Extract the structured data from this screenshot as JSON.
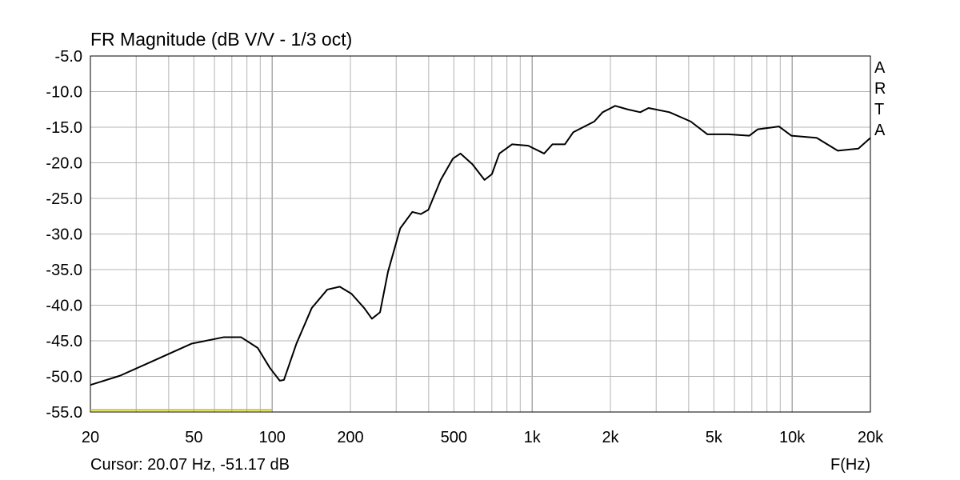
{
  "chart_data": {
    "type": "line",
    "title": "FR Magnitude (dB V/V - 1/3 oct)",
    "watermark": "ARTA",
    "x_label": "F(Hz)",
    "cursor_label": "Cursor: 20.07 Hz, -51.17 dB",
    "x_scale": "log",
    "grid": true,
    "xlim": [
      20,
      20000
    ],
    "ylim": [
      -55,
      -5
    ],
    "xticks": [
      20,
      50,
      100,
      200,
      500,
      {
        "value": 1000,
        "label": "1k"
      },
      {
        "value": 2000,
        "label": "2k"
      },
      {
        "value": 5000,
        "label": "5k"
      },
      {
        "value": 10000,
        "label": "10k"
      },
      {
        "value": 20000,
        "label": "20k"
      }
    ],
    "xgrid": [
      30,
      40,
      60,
      70,
      80,
      90,
      300,
      400,
      600,
      700,
      800,
      900,
      3000,
      4000,
      6000,
      7000,
      8000,
      9000
    ],
    "yticks": [
      {
        "value": -5,
        "label": "-5.0"
      },
      {
        "value": -10,
        "label": "-10.0"
      },
      {
        "value": -15,
        "label": "-15.0"
      },
      {
        "value": -20,
        "label": "-20.0"
      },
      {
        "value": -25,
        "label": "-25.0"
      },
      {
        "value": -30,
        "label": "-30.0"
      },
      {
        "value": -35,
        "label": "-35.0"
      },
      {
        "value": -40,
        "label": "-40.0"
      },
      {
        "value": -45,
        "label": "-45.0"
      },
      {
        "value": -50,
        "label": "-50.0"
      },
      {
        "value": -55,
        "label": "-55.0"
      }
    ],
    "x": [
      20,
      26,
      34.5,
      49,
      65,
      76,
      88,
      98,
      107,
      111,
      124,
      142,
      163,
      182,
      202,
      226,
      242,
      260,
      279,
      311,
      346,
      373,
      399,
      445,
      496,
      530,
      589,
      656,
      700,
      748,
      838,
      966,
      1112,
      1197,
      1337,
      1440,
      1734,
      1867,
      2086,
      2331,
      2606,
      2804,
      3377,
      4073,
      4723,
      5681,
      6840,
      7372,
      8898,
      9939,
      12440,
      14980,
      17980,
      20000
    ],
    "series": [
      {
        "color": "#000000",
        "values": [
          -51.2,
          -49.9,
          -47.9,
          -45.4,
          -44.5,
          -44.5,
          -46.0,
          -48.8,
          -50.6,
          -50.5,
          -45.4,
          -40.4,
          -37.8,
          -37.4,
          -38.4,
          -40.4,
          -41.9,
          -41.0,
          -35.3,
          -29.2,
          -26.9,
          -27.2,
          -26.6,
          -22.4,
          -19.4,
          -18.7,
          -20.2,
          -22.4,
          -21.6,
          -18.7,
          -17.4,
          -17.6,
          -18.7,
          -17.4,
          -17.4,
          -15.7,
          -14.2,
          -12.9,
          -12.0,
          -12.5,
          -12.9,
          -12.3,
          -12.9,
          -14.2,
          -16.0,
          -16.0,
          -16.2,
          -15.3,
          -14.9,
          -16.2,
          -16.5,
          -18.3,
          -18.0,
          -16.5
        ]
      }
    ],
    "reference_line": {
      "x": [
        20,
        100
      ],
      "y": -54.7,
      "color": "#c8c800"
    }
  }
}
